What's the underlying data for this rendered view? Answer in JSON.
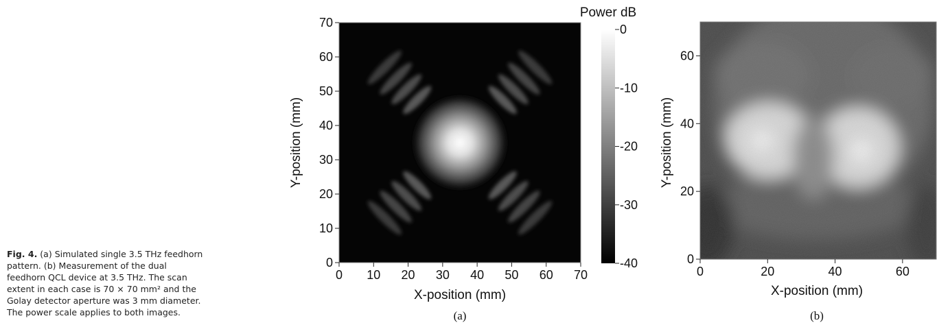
{
  "caption": {
    "label": "Fig. 4.",
    "text": " (a) Simulated single 3.5 THz feedhorn pattern. (b) Measurement of the dual feedhorn QCL device at 3.5 THz. The scan extent in each case is 70 × 70 mm² and the Golay detector aperture was 3 mm diameter. The power scale applies to both images."
  },
  "chart_data": [
    {
      "type": "heatmap",
      "panel_label": "(a)",
      "xlabel": "X-position (mm)",
      "ylabel": "Y-position (mm)",
      "xlim": [
        0,
        70
      ],
      "ylim": [
        0,
        70
      ],
      "x_ticks": [
        0,
        10,
        20,
        30,
        40,
        50,
        60,
        70
      ],
      "y_ticks": [
        0,
        10,
        20,
        30,
        40,
        50,
        60,
        70
      ],
      "colorbar": {
        "title": "Power dB",
        "ticks": [
          0,
          -10,
          -20,
          -30,
          -40
        ],
        "range": [
          -40,
          0
        ]
      },
      "features": {
        "main_lobe_center_mm": [
          35,
          35
        ],
        "side_lobes": "diagonal streaks toward the four corners"
      }
    },
    {
      "type": "heatmap",
      "panel_label": "(b)",
      "xlabel": "X-position (mm)",
      "ylabel": "Y-position (mm)",
      "xlim": [
        0,
        70
      ],
      "ylim": [
        0,
        70
      ],
      "x_ticks": [
        0,
        20,
        40,
        60
      ],
      "y_ticks": [
        0,
        20,
        40,
        60
      ],
      "features": {
        "lobe_centers_mm": [
          [
            18,
            34
          ],
          [
            45,
            31
          ]
        ]
      }
    }
  ]
}
